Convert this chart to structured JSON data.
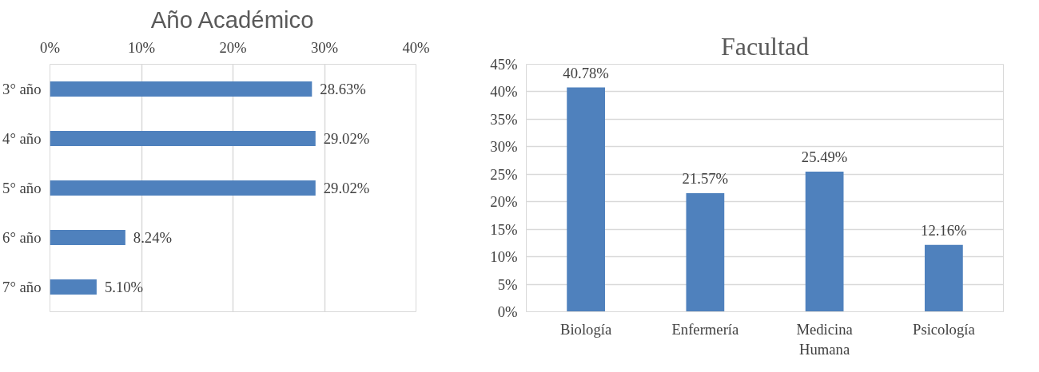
{
  "chart_data": [
    {
      "type": "bar",
      "title": "Año Académico",
      "orientation": "horizontal",
      "categories": [
        "3° año",
        "4° año",
        "5° año",
        "6° año",
        "7° año"
      ],
      "values": [
        28.63,
        29.02,
        29.02,
        8.24,
        5.1
      ],
      "value_labels": [
        "28.63%",
        "29.02%",
        "29.02%",
        "8.24%",
        "5.10%"
      ],
      "color": "#4f81bd",
      "xlim": [
        0,
        40
      ],
      "xticks": [
        {
          "value": 0,
          "label": "0%"
        },
        {
          "value": 10,
          "label": "10%"
        },
        {
          "value": 20,
          "label": "20%"
        },
        {
          "value": 30,
          "label": "30%"
        },
        {
          "value": 40,
          "label": "40%"
        }
      ],
      "grid": "x"
    },
    {
      "type": "bar",
      "title": "Facultad",
      "categories": [
        "Biología",
        "Enfermería",
        "Medicina Humana",
        "Psicología"
      ],
      "values": [
        40.78,
        21.57,
        25.49,
        12.16
      ],
      "value_labels": [
        "40.78%",
        "21.57%",
        "25.49%",
        "12.16%"
      ],
      "color": "#4f81bd",
      "ylim": [
        0,
        45
      ],
      "yticks": [
        {
          "value": 0,
          "label": "0%"
        },
        {
          "value": 5,
          "label": "5%"
        },
        {
          "value": 10,
          "label": "10%"
        },
        {
          "value": 15,
          "label": "15%"
        },
        {
          "value": 20,
          "label": "20%"
        },
        {
          "value": 25,
          "label": "25%"
        },
        {
          "value": 30,
          "label": "30%"
        },
        {
          "value": 35,
          "label": "35%"
        },
        {
          "value": 40,
          "label": "40%"
        },
        {
          "value": 45,
          "label": "45%"
        }
      ],
      "grid": "y"
    }
  ]
}
